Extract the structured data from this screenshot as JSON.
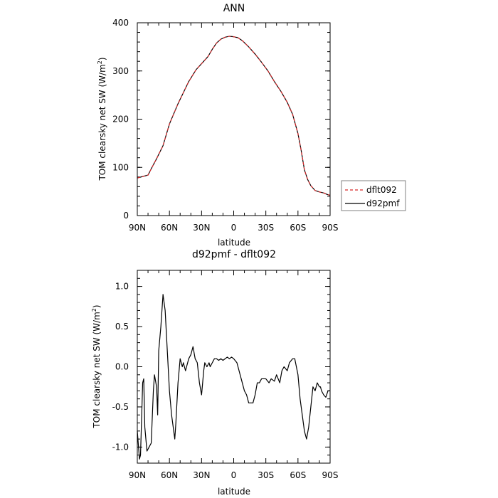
{
  "chart_data": [
    {
      "type": "line",
      "title": "ANN",
      "xlabel": "latitude",
      "ylabel": "TOM clearsky net SW (W/m²)",
      "x_tick_labels": [
        "90N",
        "60N",
        "30N",
        "0",
        "30S",
        "60S",
        "90S"
      ],
      "xlim": [
        90,
        -90
      ],
      "ylim": [
        0,
        400
      ],
      "y_ticks": [
        0,
        100,
        200,
        300,
        400
      ],
      "legend_position": "right",
      "series": [
        {
          "name": "dflt092",
          "color": "#d62728",
          "dash": "dashed",
          "x": [
            90,
            85,
            80,
            77,
            72,
            66,
            60,
            52,
            42,
            35,
            28,
            24,
            20,
            16,
            12,
            8,
            4,
            0,
            -4,
            -8,
            -14,
            -20,
            -26,
            -32,
            -38,
            -44,
            -50,
            -55,
            -60,
            -63,
            -66,
            -69,
            -72,
            -76,
            -80,
            -84,
            -87,
            -90
          ],
          "y": [
            78,
            81,
            84,
            97,
            118,
            145,
            190,
            232,
            278,
            303,
            320,
            330,
            345,
            358,
            366,
            370,
            372,
            371,
            369,
            363,
            350,
            335,
            318,
            300,
            278,
            258,
            235,
            210,
            170,
            135,
            95,
            75,
            62,
            52,
            49,
            47,
            44,
            42
          ]
        },
        {
          "name": "d92pmf",
          "color": "#000000",
          "dash": "solid",
          "x": [
            90,
            85,
            80,
            77,
            72,
            66,
            60,
            52,
            42,
            35,
            28,
            24,
            20,
            16,
            12,
            8,
            4,
            0,
            -4,
            -8,
            -14,
            -20,
            -26,
            -32,
            -38,
            -44,
            -50,
            -55,
            -60,
            -63,
            -66,
            -69,
            -72,
            -76,
            -80,
            -84,
            -87,
            -90
          ],
          "y": [
            78,
            81,
            84,
            97,
            118,
            145,
            190,
            232,
            278,
            303,
            320,
            330,
            345,
            358,
            366,
            370,
            372,
            371,
            369,
            363,
            350,
            335,
            318,
            300,
            278,
            258,
            235,
            210,
            170,
            135,
            95,
            75,
            62,
            52,
            49,
            47,
            44,
            42
          ]
        }
      ]
    },
    {
      "type": "line",
      "title": "d92pmf - dflt092",
      "xlabel": "latitude",
      "ylabel": "TOM clearsky net SW (W/m²)",
      "x_tick_labels": [
        "90N",
        "60N",
        "30N",
        "0",
        "30S",
        "60S",
        "90S"
      ],
      "xlim": [
        90,
        -90
      ],
      "ylim": [
        -1.2,
        1.2
      ],
      "y_ticks": [
        -1.0,
        -0.5,
        0.0,
        0.5,
        1.0
      ],
      "y_tick_labels": [
        "-1.0",
        "-0.5",
        "0.0",
        "0.5",
        "1.0"
      ],
      "series": [
        {
          "color": "#000000",
          "x": [
            90,
            88,
            87,
            85,
            84,
            83,
            81,
            79,
            77,
            75,
            74,
            72,
            71,
            70,
            68,
            66,
            64,
            62,
            60,
            58,
            55,
            54,
            52,
            50,
            48,
            47,
            45,
            42,
            40,
            38,
            36,
            34,
            32,
            30,
            28,
            27,
            25,
            23,
            22,
            20,
            18,
            16,
            14,
            12,
            10,
            8,
            6,
            4,
            2,
            0,
            -3,
            -5,
            -8,
            -10,
            -12,
            -14,
            -16,
            -18,
            -20,
            -22,
            -24,
            -26,
            -28,
            -30,
            -33,
            -35,
            -38,
            -40,
            -43,
            -45,
            -47,
            -50,
            -52,
            -55,
            -57,
            -60,
            -62,
            -64,
            -66,
            -67,
            -68,
            -70,
            -72,
            -74,
            -76,
            -78,
            -80,
            -81,
            -82,
            -84,
            -86,
            -88,
            -90
          ],
          "y": [
            -0.8,
            -1.15,
            -1.1,
            -0.2,
            -0.15,
            -0.75,
            -1.05,
            -1.0,
            -0.95,
            -0.3,
            -0.1,
            -0.25,
            -0.6,
            0.2,
            0.5,
            0.9,
            0.7,
            0.2,
            -0.3,
            -0.6,
            -0.9,
            -0.7,
            -0.2,
            0.1,
            0.0,
            0.05,
            -0.05,
            0.1,
            0.15,
            0.25,
            0.1,
            0.05,
            -0.2,
            -0.35,
            -0.05,
            0.05,
            0.0,
            0.05,
            0.0,
            0.05,
            0.1,
            0.1,
            0.08,
            0.1,
            0.08,
            0.1,
            0.12,
            0.1,
            0.12,
            0.1,
            0.05,
            -0.05,
            -0.2,
            -0.3,
            -0.35,
            -0.45,
            -0.45,
            -0.45,
            -0.35,
            -0.2,
            -0.2,
            -0.15,
            -0.15,
            -0.15,
            -0.2,
            -0.15,
            -0.18,
            -0.1,
            -0.2,
            -0.05,
            0.0,
            -0.05,
            0.05,
            0.1,
            0.1,
            -0.1,
            -0.4,
            -0.6,
            -0.8,
            -0.85,
            -0.9,
            -0.75,
            -0.5,
            -0.25,
            -0.3,
            -0.2,
            -0.25,
            -0.25,
            -0.3,
            -0.35,
            -0.38,
            -0.3,
            -0.3
          ]
        }
      ]
    }
  ]
}
